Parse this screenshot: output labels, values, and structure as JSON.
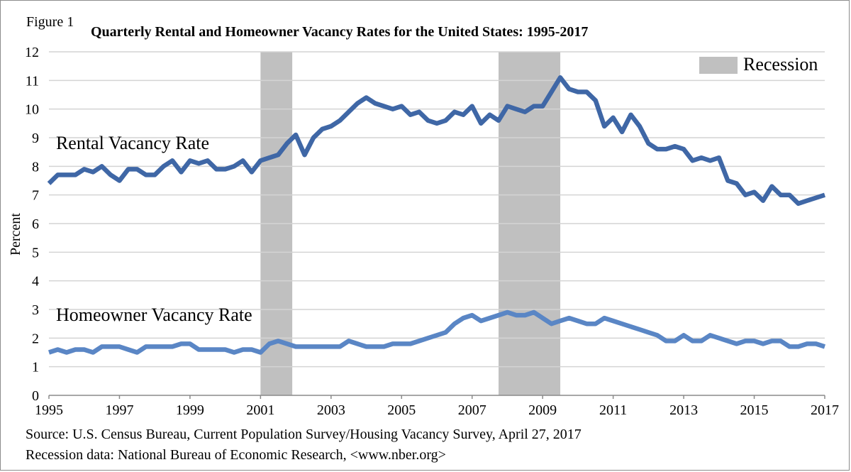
{
  "figure_label": "Figure 1",
  "source_text": "Source: U.S. Census Bureau, Current Population Survey/Housing Vacancy Survey, April 27, 2017",
  "recession_data_text": "Recession data: National Bureau of Economic Research, <www.nber.org>",
  "colors": {
    "rental": "#3f67a6",
    "homeowner": "#5a86c5",
    "recession": "#c0c0c0",
    "grid": "#d4d4d4"
  },
  "chart_data": {
    "type": "line",
    "title": "Quarterly Rental and Homeowner Vacancy Rates for the United States: 1995-2017",
    "ylabel": "Percent",
    "xlabel": "",
    "xlim": [
      1995,
      2017
    ],
    "ylim": [
      0,
      12
    ],
    "grid": true,
    "yticks": [
      0,
      1,
      2,
      3,
      4,
      5,
      6,
      7,
      8,
      9,
      10,
      11,
      12
    ],
    "xticks": [
      "1995",
      "1997",
      "1999",
      "2001",
      "2003",
      "2005",
      "2007",
      "2009",
      "2011",
      "2013",
      "2015",
      "2017"
    ],
    "legend": {
      "position": "top-right",
      "entries": [
        "Recession"
      ]
    },
    "recessions": [
      [
        2001.0,
        2001.9
      ],
      [
        2007.75,
        2009.5
      ]
    ],
    "series": [
      {
        "name": "Rental Vacancy Rate",
        "label_at": [
          1995.2,
          8.6
        ],
        "points": [
          [
            1995.0,
            7.4
          ],
          [
            1995.25,
            7.7
          ],
          [
            1995.5,
            7.7
          ],
          [
            1995.75,
            7.7
          ],
          [
            1996.0,
            7.9
          ],
          [
            1996.25,
            7.8
          ],
          [
            1996.5,
            8.0
          ],
          [
            1996.75,
            7.7
          ],
          [
            1997.0,
            7.5
          ],
          [
            1997.25,
            7.9
          ],
          [
            1997.5,
            7.9
          ],
          [
            1997.75,
            7.7
          ],
          [
            1998.0,
            7.7
          ],
          [
            1998.25,
            8.0
          ],
          [
            1998.5,
            8.2
          ],
          [
            1998.75,
            7.8
          ],
          [
            1999.0,
            8.2
          ],
          [
            1999.25,
            8.1
          ],
          [
            1999.5,
            8.2
          ],
          [
            1999.75,
            7.9
          ],
          [
            2000.0,
            7.9
          ],
          [
            2000.25,
            8.0
          ],
          [
            2000.5,
            8.2
          ],
          [
            2000.75,
            7.8
          ],
          [
            2001.0,
            8.2
          ],
          [
            2001.25,
            8.3
          ],
          [
            2001.5,
            8.4
          ],
          [
            2001.75,
            8.8
          ],
          [
            2002.0,
            9.1
          ],
          [
            2002.25,
            8.4
          ],
          [
            2002.5,
            9.0
          ],
          [
            2002.75,
            9.3
          ],
          [
            2003.0,
            9.4
          ],
          [
            2003.25,
            9.6
          ],
          [
            2003.5,
            9.9
          ],
          [
            2003.75,
            10.2
          ],
          [
            2004.0,
            10.4
          ],
          [
            2004.25,
            10.2
          ],
          [
            2004.5,
            10.1
          ],
          [
            2004.75,
            10.0
          ],
          [
            2005.0,
            10.1
          ],
          [
            2005.25,
            9.8
          ],
          [
            2005.5,
            9.9
          ],
          [
            2005.75,
            9.6
          ],
          [
            2006.0,
            9.5
          ],
          [
            2006.25,
            9.6
          ],
          [
            2006.5,
            9.9
          ],
          [
            2006.75,
            9.8
          ],
          [
            2007.0,
            10.1
          ],
          [
            2007.25,
            9.5
          ],
          [
            2007.5,
            9.8
          ],
          [
            2007.75,
            9.6
          ],
          [
            2008.0,
            10.1
          ],
          [
            2008.25,
            10.0
          ],
          [
            2008.5,
            9.9
          ],
          [
            2008.75,
            10.1
          ],
          [
            2009.0,
            10.1
          ],
          [
            2009.25,
            10.6
          ],
          [
            2009.5,
            11.1
          ],
          [
            2009.75,
            10.7
          ],
          [
            2010.0,
            10.6
          ],
          [
            2010.25,
            10.6
          ],
          [
            2010.5,
            10.3
          ],
          [
            2010.75,
            9.4
          ],
          [
            2011.0,
            9.7
          ],
          [
            2011.25,
            9.2
          ],
          [
            2011.5,
            9.8
          ],
          [
            2011.75,
            9.4
          ],
          [
            2012.0,
            8.8
          ],
          [
            2012.25,
            8.6
          ],
          [
            2012.5,
            8.6
          ],
          [
            2012.75,
            8.7
          ],
          [
            2013.0,
            8.6
          ],
          [
            2013.25,
            8.2
          ],
          [
            2013.5,
            8.3
          ],
          [
            2013.75,
            8.2
          ],
          [
            2014.0,
            8.3
          ],
          [
            2014.25,
            7.5
          ],
          [
            2014.5,
            7.4
          ],
          [
            2014.75,
            7.0
          ],
          [
            2015.0,
            7.1
          ],
          [
            2015.25,
            6.8
          ],
          [
            2015.5,
            7.3
          ],
          [
            2015.75,
            7.0
          ],
          [
            2016.0,
            7.0
          ],
          [
            2016.25,
            6.7
          ],
          [
            2016.5,
            6.8
          ],
          [
            2016.75,
            6.9
          ],
          [
            2017.0,
            7.0
          ]
        ]
      },
      {
        "name": "Homeowner Vacancy Rate",
        "label_at": [
          1995.2,
          2.6
        ],
        "points": [
          [
            1995.0,
            1.5
          ],
          [
            1995.25,
            1.6
          ],
          [
            1995.5,
            1.5
          ],
          [
            1995.75,
            1.6
          ],
          [
            1996.0,
            1.6
          ],
          [
            1996.25,
            1.5
          ],
          [
            1996.5,
            1.7
          ],
          [
            1996.75,
            1.7
          ],
          [
            1997.0,
            1.7
          ],
          [
            1997.25,
            1.6
          ],
          [
            1997.5,
            1.5
          ],
          [
            1997.75,
            1.7
          ],
          [
            1998.0,
            1.7
          ],
          [
            1998.25,
            1.7
          ],
          [
            1998.5,
            1.7
          ],
          [
            1998.75,
            1.8
          ],
          [
            1999.0,
            1.8
          ],
          [
            1999.25,
            1.6
          ],
          [
            1999.5,
            1.6
          ],
          [
            1999.75,
            1.6
          ],
          [
            2000.0,
            1.6
          ],
          [
            2000.25,
            1.5
          ],
          [
            2000.5,
            1.6
          ],
          [
            2000.75,
            1.6
          ],
          [
            2001.0,
            1.5
          ],
          [
            2001.25,
            1.8
          ],
          [
            2001.5,
            1.9
          ],
          [
            2001.75,
            1.8
          ],
          [
            2002.0,
            1.7
          ],
          [
            2002.25,
            1.7
          ],
          [
            2002.5,
            1.7
          ],
          [
            2002.75,
            1.7
          ],
          [
            2003.0,
            1.7
          ],
          [
            2003.25,
            1.7
          ],
          [
            2003.5,
            1.9
          ],
          [
            2003.75,
            1.8
          ],
          [
            2004.0,
            1.7
          ],
          [
            2004.25,
            1.7
          ],
          [
            2004.5,
            1.7
          ],
          [
            2004.75,
            1.8
          ],
          [
            2005.0,
            1.8
          ],
          [
            2005.25,
            1.8
          ],
          [
            2005.5,
            1.9
          ],
          [
            2005.75,
            2.0
          ],
          [
            2006.0,
            2.1
          ],
          [
            2006.25,
            2.2
          ],
          [
            2006.5,
            2.5
          ],
          [
            2006.75,
            2.7
          ],
          [
            2007.0,
            2.8
          ],
          [
            2007.25,
            2.6
          ],
          [
            2007.5,
            2.7
          ],
          [
            2007.75,
            2.8
          ],
          [
            2008.0,
            2.9
          ],
          [
            2008.25,
            2.8
          ],
          [
            2008.5,
            2.8
          ],
          [
            2008.75,
            2.9
          ],
          [
            2009.0,
            2.7
          ],
          [
            2009.25,
            2.5
          ],
          [
            2009.5,
            2.6
          ],
          [
            2009.75,
            2.7
          ],
          [
            2010.0,
            2.6
          ],
          [
            2010.25,
            2.5
          ],
          [
            2010.5,
            2.5
          ],
          [
            2010.75,
            2.7
          ],
          [
            2011.0,
            2.6
          ],
          [
            2011.25,
            2.5
          ],
          [
            2011.5,
            2.4
          ],
          [
            2011.75,
            2.3
          ],
          [
            2012.0,
            2.2
          ],
          [
            2012.25,
            2.1
          ],
          [
            2012.5,
            1.9
          ],
          [
            2012.75,
            1.9
          ],
          [
            2013.0,
            2.1
          ],
          [
            2013.25,
            1.9
          ],
          [
            2013.5,
            1.9
          ],
          [
            2013.75,
            2.1
          ],
          [
            2014.0,
            2.0
          ],
          [
            2014.25,
            1.9
          ],
          [
            2014.5,
            1.8
          ],
          [
            2014.75,
            1.9
          ],
          [
            2015.0,
            1.9
          ],
          [
            2015.25,
            1.8
          ],
          [
            2015.5,
            1.9
          ],
          [
            2015.75,
            1.9
          ],
          [
            2016.0,
            1.7
          ],
          [
            2016.25,
            1.7
          ],
          [
            2016.5,
            1.8
          ],
          [
            2016.75,
            1.8
          ],
          [
            2017.0,
            1.7
          ]
        ]
      }
    ]
  }
}
